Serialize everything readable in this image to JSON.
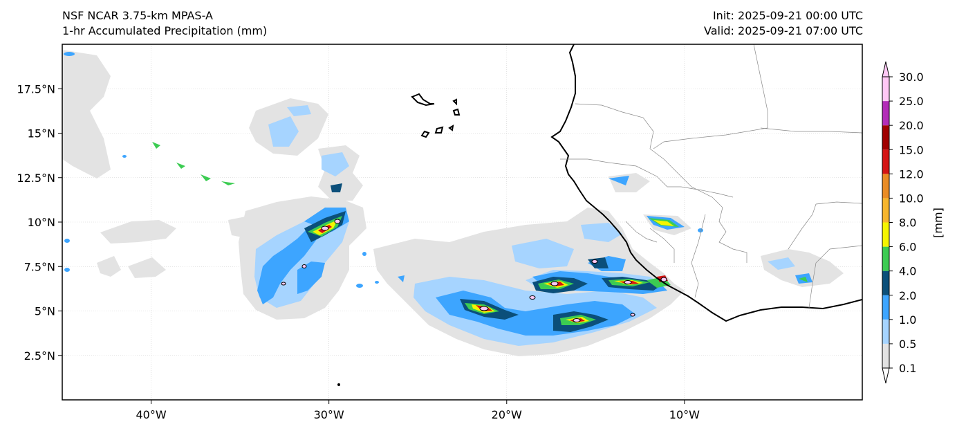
{
  "header": {
    "model": "NSF NCAR 3.75-km MPAS-A",
    "field": "1-hr Accumulated Precipitation (mm)",
    "init": "Init: 2025-09-21 00:00 UTC",
    "valid": "Valid: 2025-09-21 07:00 UTC"
  },
  "map": {
    "lon_range": [
      -45,
      0
    ],
    "lat_range": [
      0,
      20
    ],
    "lon_ticks": [
      {
        "value": -40,
        "label": "40°W"
      },
      {
        "value": -30,
        "label": "30°W"
      },
      {
        "value": -20,
        "label": "20°W"
      },
      {
        "value": -10,
        "label": "10°W"
      }
    ],
    "lat_ticks": [
      {
        "value": 17.5,
        "label": "17.5°N"
      },
      {
        "value": 15,
        "label": "15°N"
      },
      {
        "value": 12.5,
        "label": "12.5°N"
      },
      {
        "value": 10,
        "label": "10°N"
      },
      {
        "value": 7.5,
        "label": "7.5°N"
      },
      {
        "value": 5,
        "label": "5°N"
      },
      {
        "value": 2.5,
        "label": "2.5°N"
      }
    ],
    "gridlines": true,
    "coastline_color": "#000000",
    "border_color": "#888888"
  },
  "colorbar": {
    "unit_label": "[mm]",
    "extend": "both",
    "levels": [
      {
        "value": "0.1",
        "color": "#e3e3e3"
      },
      {
        "value": "0.5",
        "color": "#a6d4ff"
      },
      {
        "value": "1.0",
        "color": "#3da5ff"
      },
      {
        "value": "2.0",
        "color": "#0b4f7a"
      },
      {
        "value": "4.0",
        "color": "#3ccc52"
      },
      {
        "value": "6.0",
        "color": "#f5f500"
      },
      {
        "value": "8.0",
        "color": "#f6b52c"
      },
      {
        "value": "10.0",
        "color": "#ea8c25"
      },
      {
        "value": "12.0",
        "color": "#d41414"
      },
      {
        "value": "15.0",
        "color": "#a00000"
      },
      {
        "value": "20.0",
        "color": "#b32cb8"
      },
      {
        "value": "25.0",
        "color": "#ffc8f5"
      },
      {
        "value": "30.0",
        "color": "#ffc8f5"
      }
    ]
  }
}
